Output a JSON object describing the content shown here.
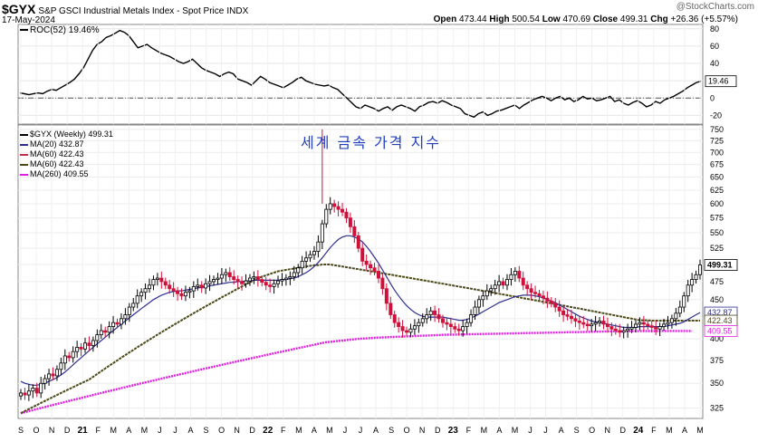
{
  "header": {
    "symbol": "$GYX",
    "description": "S&P GSCI Industrial Metals Index - Spot Price",
    "exchange": "INDX",
    "date": "17-May-2024",
    "watermark": "@StockCharts.com",
    "ohlc": {
      "open_label": "Open",
      "open": "473.44",
      "high_label": "High",
      "high": "500.54",
      "low_label": "Low",
      "low": "470.69",
      "close_label": "Close",
      "close": "499.31",
      "chg_label": "Chg",
      "chg": "+26.36 (+5.57%)"
    }
  },
  "chart_title_overlay": "세계 금속 가격 지수",
  "colors": {
    "up": "#000000",
    "down": "#d0103a",
    "ma20": "#2e2e8f",
    "ma60_a": "#c0304a",
    "ma60_b": "#4d4a1a",
    "ma260": "#e020e0",
    "zero": "#555555"
  },
  "chart_data": [
    {
      "type": "line",
      "panel": "ROC",
      "legend_label": "ROC(52) 19.46%",
      "yticks": [
        80,
        60,
        40,
        20,
        0,
        -20
      ],
      "ylim": [
        -30,
        85
      ],
      "last_value_label": "19.46",
      "series": [
        {
          "name": "ROC(52)",
          "values": [
            6,
            5,
            4,
            5,
            6,
            5,
            8,
            10,
            9,
            12,
            15,
            18,
            22,
            28,
            35,
            45,
            55,
            62,
            65,
            70,
            72,
            75,
            78,
            76,
            72,
            65,
            58,
            60,
            62,
            58,
            55,
            52,
            50,
            48,
            45,
            42,
            40,
            42,
            45,
            40,
            35,
            32,
            30,
            28,
            25,
            28,
            30,
            28,
            22,
            20,
            18,
            15,
            20,
            25,
            22,
            18,
            16,
            14,
            12,
            15,
            18,
            22,
            24,
            20,
            18,
            16,
            15,
            14,
            15,
            12,
            10,
            5,
            0,
            -5,
            -10,
            -12,
            -8,
            -10,
            -12,
            -15,
            -12,
            -10,
            -14,
            -10,
            -8,
            -10,
            -12,
            -15,
            -10,
            -8,
            -5,
            -4,
            -6,
            -3,
            -5,
            -8,
            -10,
            -12,
            -18,
            -20,
            -22,
            -18,
            -16,
            -20,
            -18,
            -15,
            -14,
            -12,
            -10,
            -8,
            -12,
            -8,
            -5,
            -2,
            0,
            2,
            0,
            -3,
            0,
            2,
            -2,
            0,
            -4,
            -2,
            2,
            -1,
            0,
            -3,
            -2,
            0,
            2,
            -4,
            -2,
            -6,
            -8,
            -5,
            -3,
            -6,
            -10,
            -8,
            -4,
            -6,
            -2,
            0,
            2,
            5,
            8,
            12,
            15,
            18,
            19.46
          ]
        }
      ]
    },
    {
      "type": "candlestick",
      "panel": "Price",
      "legend": [
        {
          "label": "$GYX (Weekly) 499.31"
        },
        {
          "label": "MA(20) 432.87"
        },
        {
          "label": "MA(60) 422.43"
        },
        {
          "label": "MA(60) 422.43"
        },
        {
          "label": "MA(260) 409.55"
        }
      ],
      "yticks": [
        750,
        725,
        700,
        675,
        650,
        625,
        600,
        575,
        550,
        525,
        500,
        475,
        450,
        425,
        400,
        375,
        350,
        325
      ],
      "value_labels": [
        {
          "text": "499.31",
          "value": 499.31,
          "color": "#000000",
          "bold": true
        },
        {
          "text": "432.87",
          "value": 432.87,
          "color": "#2e2e8f",
          "bold": false
        },
        {
          "text": "422.43",
          "value": 422.43,
          "color": "#4d4a1a",
          "bold": false
        },
        {
          "text": "409.55",
          "value": 409.55,
          "color": "#e020e0",
          "bold": false
        }
      ],
      "x_axis_labels": [
        "S",
        "O",
        "N",
        "D",
        "21",
        "F",
        "M",
        "A",
        "M",
        "J",
        "J",
        "A",
        "S",
        "O",
        "N",
        "D",
        "22",
        "F",
        "M",
        "A",
        "M",
        "J",
        "J",
        "A",
        "S",
        "O",
        "N",
        "D",
        "23",
        "F",
        "M",
        "A",
        "M",
        "J",
        "J",
        "A",
        "S",
        "O",
        "N",
        "D",
        "24",
        "F",
        "M",
        "A",
        "M"
      ],
      "close": [
        340,
        338,
        342,
        345,
        340,
        350,
        355,
        360,
        358,
        365,
        372,
        380,
        378,
        385,
        390,
        388,
        395,
        392,
        398,
        405,
        410,
        408,
        415,
        420,
        418,
        425,
        430,
        440,
        445,
        455,
        460,
        465,
        470,
        478,
        480,
        475,
        470,
        465,
        462,
        458,
        455,
        460,
        462,
        468,
        470,
        466,
        472,
        475,
        478,
        480,
        485,
        488,
        482,
        478,
        475,
        472,
        476,
        480,
        482,
        478,
        474,
        470,
        468,
        472,
        476,
        478,
        480,
        482,
        488,
        495,
        505,
        510,
        515,
        520,
        535,
        565,
        590,
        600,
        595,
        590,
        585,
        575,
        560,
        545,
        525,
        505,
        500,
        495,
        490,
        480,
        465,
        445,
        430,
        420,
        415,
        410,
        408,
        412,
        416,
        420,
        425,
        430,
        435,
        430,
        425,
        420,
        418,
        415,
        412,
        410,
        415,
        420,
        430,
        440,
        450,
        455,
        462,
        465,
        470,
        475,
        470,
        478,
        485,
        490,
        480,
        470,
        465,
        460,
        458,
        455,
        452,
        448,
        445,
        440,
        435,
        430,
        428,
        425,
        422,
        420,
        418,
        416,
        418,
        420,
        422,
        418,
        415,
        412,
        410,
        408,
        410,
        412,
        414,
        418,
        420,
        418,
        416,
        414,
        412,
        415,
        418,
        420,
        425,
        432,
        440,
        455,
        470,
        478,
        485,
        499.31
      ],
      "ma20": [
        352,
        350,
        349,
        348,
        348,
        349,
        350,
        352,
        354,
        356,
        359,
        362,
        366,
        370,
        374,
        378,
        382,
        386,
        390,
        394,
        398,
        402,
        406,
        410,
        414,
        418,
        422,
        426,
        430,
        434,
        438,
        442,
        446,
        450,
        453,
        456,
        458,
        460,
        461,
        462,
        462,
        463,
        464,
        465,
        466,
        467,
        468,
        469,
        470,
        471,
        472,
        473,
        474,
        474,
        475,
        475,
        476,
        476,
        477,
        477,
        477,
        477,
        477,
        477,
        477,
        478,
        478,
        479,
        480,
        482,
        485,
        488,
        492,
        497,
        503,
        510,
        518,
        526,
        533,
        539,
        543,
        545,
        545,
        543,
        540,
        535,
        528,
        520,
        511,
        502,
        492,
        482,
        472,
        463,
        455,
        448,
        442,
        437,
        433,
        430,
        428,
        427,
        427,
        427,
        427,
        427,
        426,
        425,
        424,
        423,
        423,
        424,
        426,
        428,
        431,
        434,
        437,
        440,
        443,
        446,
        448,
        450,
        452,
        454,
        455,
        456,
        456,
        456,
        455,
        454,
        452,
        450,
        448,
        446,
        443,
        440,
        437,
        434,
        431,
        428,
        426,
        424,
        422,
        421,
        420,
        419,
        418,
        417,
        416,
        415,
        414,
        414,
        414,
        414,
        415,
        415,
        415,
        415,
        415,
        415,
        415,
        416,
        417,
        418,
        419,
        421,
        424,
        427,
        430,
        432.87
      ],
      "ma60": [
        320,
        322,
        324,
        326,
        328,
        330,
        332,
        334,
        336,
        338,
        340,
        342,
        344,
        346,
        348,
        350,
        352,
        354,
        357,
        360,
        363,
        366,
        369,
        372,
        375,
        378,
        381,
        384,
        387,
        390,
        393,
        396,
        399,
        402,
        405,
        408,
        411,
        414,
        417,
        420,
        423,
        426,
        429,
        432,
        435,
        438,
        441,
        444,
        447,
        450,
        453,
        456,
        459,
        462,
        465,
        468,
        471,
        474,
        477,
        480,
        482,
        484,
        486,
        488,
        490,
        491,
        492,
        493,
        494,
        495,
        496,
        497,
        498,
        499,
        499,
        500,
        500,
        500,
        499,
        498,
        497,
        496,
        495,
        494,
        493,
        492,
        491,
        490,
        489,
        488,
        487,
        486,
        485,
        484,
        483,
        482,
        481,
        480,
        479,
        478,
        477,
        476,
        475,
        474,
        473,
        472,
        471,
        470,
        469,
        468,
        467,
        466,
        465,
        464,
        463,
        462,
        461,
        460,
        459,
        458,
        457,
        456,
        455,
        454,
        453,
        452,
        451,
        450,
        449,
        448,
        447,
        446,
        445,
        444,
        443,
        442,
        441,
        440,
        439,
        438,
        437,
        436,
        435,
        434,
        433,
        432,
        431,
        430,
        429,
        428,
        427,
        426,
        425,
        424,
        423,
        423,
        422.8,
        422.6,
        422.5,
        422.4,
        422.43,
        422.43,
        422.43,
        422.43,
        422.43,
        422.43,
        422.43,
        422.43,
        422.43,
        422.43
      ],
      "ma260": [
        320,
        321,
        322,
        323,
        324,
        325,
        326,
        327,
        328,
        329,
        330,
        331,
        332,
        333,
        334,
        335,
        336,
        337,
        338,
        339,
        340,
        341,
        342,
        343,
        344,
        345,
        346,
        347,
        348,
        349,
        350,
        351,
        352,
        353,
        354,
        355,
        356,
        357,
        358,
        359,
        360,
        361,
        362,
        363,
        364,
        365,
        366,
        367,
        368,
        369,
        370,
        371,
        372,
        373,
        374,
        375,
        376,
        377,
        378,
        379,
        380,
        381,
        382,
        383,
        384,
        385,
        386,
        387,
        388,
        389,
        390,
        391,
        392,
        393,
        394,
        395,
        396,
        396.5,
        397,
        397.5,
        398,
        398.5,
        399,
        399.5,
        400,
        400.3,
        400.6,
        400.9,
        401.2,
        401.5,
        401.8,
        402,
        402.2,
        402.4,
        402.6,
        402.8,
        403,
        403.2,
        403.4,
        403.6,
        403.8,
        404,
        404.2,
        404.4,
        404.6,
        404.8,
        405,
        405.1,
        405.2,
        405.3,
        405.4,
        405.5,
        405.6,
        405.7,
        405.8,
        405.9,
        406,
        406.1,
        406.2,
        406.3,
        406.4,
        406.5,
        406.6,
        406.7,
        406.8,
        406.9,
        407,
        407.1,
        407.2,
        407.3,
        407.4,
        407.5,
        407.6,
        407.7,
        407.8,
        407.9,
        408,
        408.1,
        408.2,
        408.3,
        408.4,
        408.5,
        408.6,
        408.7,
        408.8,
        408.9,
        409,
        409.1,
        409.15,
        409.2,
        409.25,
        409.3,
        409.35,
        409.4,
        409.45,
        409.5,
        409.5,
        409.52,
        409.53,
        409.54,
        409.55,
        409.55,
        409.55,
        409.55,
        409.55,
        409.55,
        409.55,
        409.55
      ]
    }
  ]
}
